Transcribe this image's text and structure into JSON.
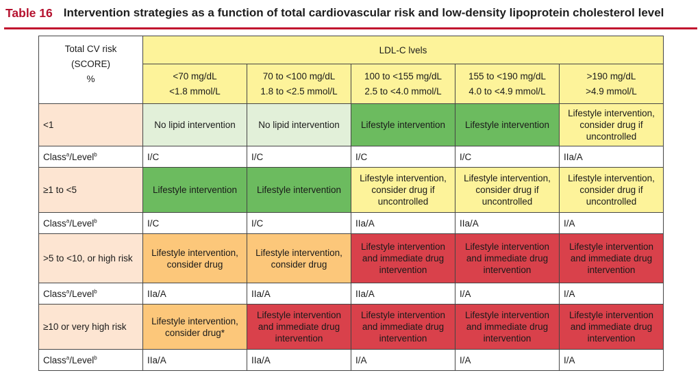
{
  "title": {
    "label": "Table 16",
    "text": "Intervention strategies as a function of total cardiovascular risk and low-density lipoprotein cholesterol level"
  },
  "header": {
    "risk_title_1": "Total CV risk",
    "risk_title_2": "(SCORE)",
    "risk_title_3": "%",
    "ldl_title": "LDL-C lvels",
    "columns": [
      {
        "line1": "<70 mg/dL",
        "line2": "<1.8 mmol/L"
      },
      {
        "line1": "70 to <100 mg/dL",
        "line2": "1.8 to <2.5 mmol/L"
      },
      {
        "line1": "100 to <155 mg/dL",
        "line2": "2.5 to <4.0 mmol/L"
      },
      {
        "line1": "155 to <190 mg/dL",
        "line2": "4.0 to <4.9 mmol/L"
      },
      {
        "line1": ">190 mg/dL",
        "line2": ">4.9 mmol/L"
      }
    ]
  },
  "class_label": {
    "class": "Class",
    "sup_a": "a",
    "level": "/Level",
    "sup_b": "b"
  },
  "rows": [
    {
      "risk": "<1",
      "cells": [
        {
          "text": "No lipid intervention",
          "color": "#e2f0d9"
        },
        {
          "text": "No lipid intervention",
          "color": "#e2f0d9"
        },
        {
          "text": "Lifestyle intervention",
          "color": "#6cbb5f"
        },
        {
          "text": "Lifestyle intervention",
          "color": "#6cbb5f"
        },
        {
          "text": "Lifestyle intervention, consider drug if uncontrolled",
          "color": "#fdf39a"
        }
      ],
      "classes": [
        "I/C",
        "I/C",
        "I/C",
        "I/C",
        "IIa/A"
      ]
    },
    {
      "risk": "≥1 to <5",
      "cells": [
        {
          "text": "Lifestyle intervention",
          "color": "#6cbb5f"
        },
        {
          "text": "Lifestyle intervention",
          "color": "#6cbb5f"
        },
        {
          "text": "Lifestyle intervention, consider drug if uncontrolled",
          "color": "#fdf39a"
        },
        {
          "text": "Lifestyle intervention, consider drug if uncontrolled",
          "color": "#fdf39a"
        },
        {
          "text": "Lifestyle intervention, consider drug if uncontrolled",
          "color": "#fdf39a"
        }
      ],
      "classes": [
        "I/C",
        "I/C",
        "IIa/A",
        "IIa/A",
        "I/A"
      ]
    },
    {
      "risk": ">5 to <10, or high risk",
      "cells": [
        {
          "text": "Lifestyle intervention, consider drug",
          "color": "#fcc77a"
        },
        {
          "text": "Lifestyle intervention, consider drug",
          "color": "#fcc77a"
        },
        {
          "text": "Lifestyle intervention and immediate drug intervention",
          "color": "#d9414b"
        },
        {
          "text": "Lifestyle intervention and immediate drug intervention",
          "color": "#d9414b"
        },
        {
          "text": "Lifestyle intervention and immediate drug intervention",
          "color": "#d9414b"
        }
      ],
      "classes": [
        "IIa/A",
        "IIa/A",
        "IIa/A",
        "I/A",
        "I/A"
      ]
    },
    {
      "risk": "≥10 or very high risk",
      "cells": [
        {
          "text": "Lifestyle intervention, consider drug*",
          "color": "#fcc77a"
        },
        {
          "text": "Lifestyle intervention and immediate drug intervention",
          "color": "#d9414b"
        },
        {
          "text": "Lifestyle intervention and immediate drug intervention",
          "color": "#d9414b"
        },
        {
          "text": "Lifestyle intervention and immediate drug intervention",
          "color": "#d9414b"
        },
        {
          "text": "Lifestyle intervention and immediate drug intervention",
          "color": "#d9414b"
        }
      ],
      "classes": [
        "IIa/A",
        "IIa/A",
        "I/A",
        "I/A",
        "I/A"
      ]
    }
  ]
}
